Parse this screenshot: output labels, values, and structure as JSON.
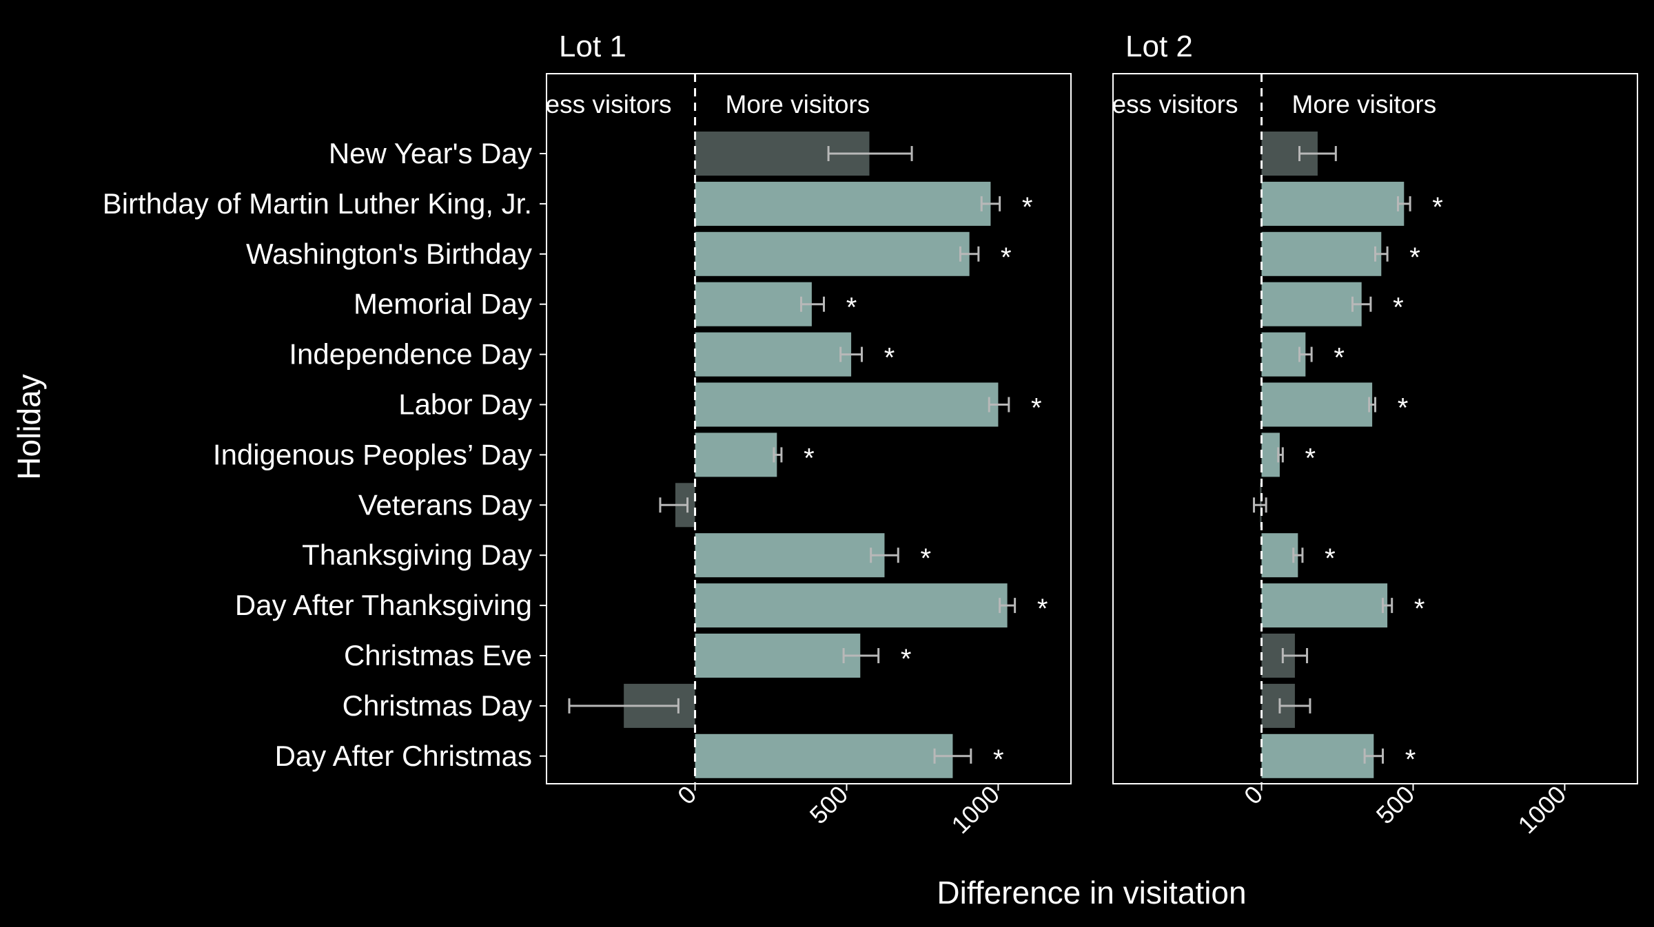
{
  "chart_data": {
    "type": "bar",
    "orientation": "horizontal",
    "ylabel": "Holiday",
    "xlabel": "Difference in visitation",
    "xlim": [
      -490,
      1240
    ],
    "xticks": [
      "0",
      "500",
      "1000"
    ],
    "zone_labels": {
      "left": "Less visitors",
      "right": "More visitors"
    },
    "significance_marker": "*",
    "colors": {
      "background": "#000000",
      "significant": "#87a8a3",
      "not_significant": "#4a5452",
      "error_bar": "#b8b8b8",
      "reference_line": "#ffffff",
      "panel_border": "#ffffff",
      "text": "#ffffff"
    },
    "categories": [
      "New Year's Day",
      "Birthday of Martin Luther King, Jr.",
      "Washington's Birthday",
      "Memorial Day",
      "Independence Day",
      "Labor Day",
      "Indigenous Peoples’ Day",
      "Veterans Day",
      "Thanksgiving Day",
      "Day After Thanksgiving",
      "Christmas Eve",
      "Christmas Day",
      "Day After Christmas"
    ],
    "panels": [
      {
        "title": "Lot 1",
        "values": [
          575,
          975,
          905,
          385,
          515,
          1000,
          270,
          -65,
          625,
          1030,
          545,
          -235,
          850
        ],
        "err_low": [
          440,
          945,
          875,
          350,
          480,
          970,
          260,
          -115,
          580,
          1005,
          490,
          -415,
          790
        ],
        "err_high": [
          715,
          1005,
          935,
          425,
          550,
          1035,
          285,
          -25,
          670,
          1055,
          605,
          -55,
          910
        ],
        "significant": [
          false,
          true,
          true,
          true,
          true,
          true,
          true,
          false,
          true,
          true,
          true,
          false,
          true
        ]
      },
      {
        "title": "Lot 2",
        "values": [
          185,
          470,
          395,
          330,
          145,
          365,
          60,
          -5,
          120,
          415,
          110,
          110,
          370
        ],
        "err_low": [
          125,
          450,
          375,
          300,
          125,
          355,
          55,
          -25,
          105,
          400,
          70,
          60,
          340
        ],
        "err_high": [
          245,
          490,
          415,
          360,
          165,
          375,
          70,
          15,
          135,
          430,
          150,
          160,
          400
        ],
        "significant": [
          false,
          true,
          true,
          true,
          true,
          true,
          true,
          false,
          true,
          true,
          false,
          false,
          true
        ]
      }
    ]
  }
}
